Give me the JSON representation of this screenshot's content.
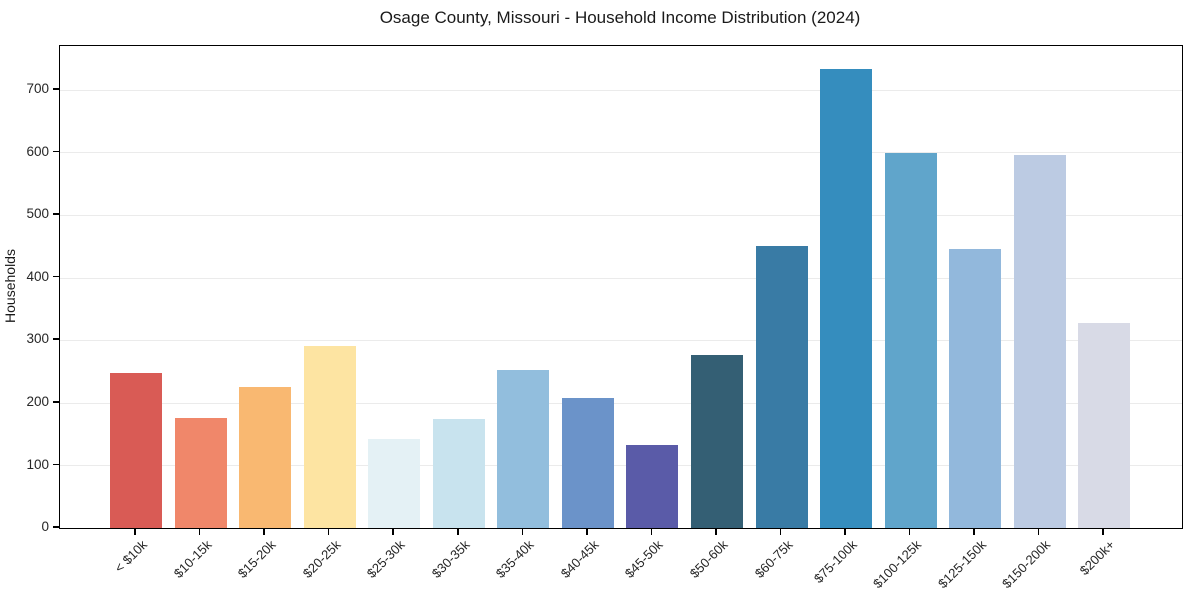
{
  "title": "Osage County, Missouri - Household Income Distribution (2024)",
  "chart_data": {
    "type": "bar",
    "title": "Osage County, Missouri - Household Income Distribution (2024)",
    "xlabel": "",
    "ylabel": "Households",
    "categories": [
      "< $10k",
      "$10-15k",
      "$15-20k",
      "$20-25k",
      "$25-30k",
      "$30-35k",
      "$35-40k",
      "$40-45k",
      "$45-50k",
      "$50-60k",
      "$60-75k",
      "$75-100k",
      "$100-125k",
      "$125-150k",
      "$150-200k",
      "$200k+"
    ],
    "values": [
      248,
      176,
      226,
      291,
      143,
      174,
      253,
      208,
      133,
      277,
      450,
      734,
      599,
      445,
      596,
      328
    ],
    "bar_colors": [
      "#d95b55",
      "#f0876a",
      "#f9b871",
      "#fde4a2",
      "#e4f1f5",
      "#c8e3ee",
      "#92bedd",
      "#6b93c9",
      "#5a5ba8",
      "#345f74",
      "#397ba5",
      "#358dbe",
      "#60a5cb",
      "#92b8dc",
      "#bccbe3",
      "#d8dae6"
    ],
    "yticks": [
      0,
      100,
      200,
      300,
      400,
      500,
      600,
      700
    ],
    "ylim": [
      0,
      770
    ],
    "grid": "horizontal",
    "legend": "none",
    "background": "#ffffff"
  }
}
